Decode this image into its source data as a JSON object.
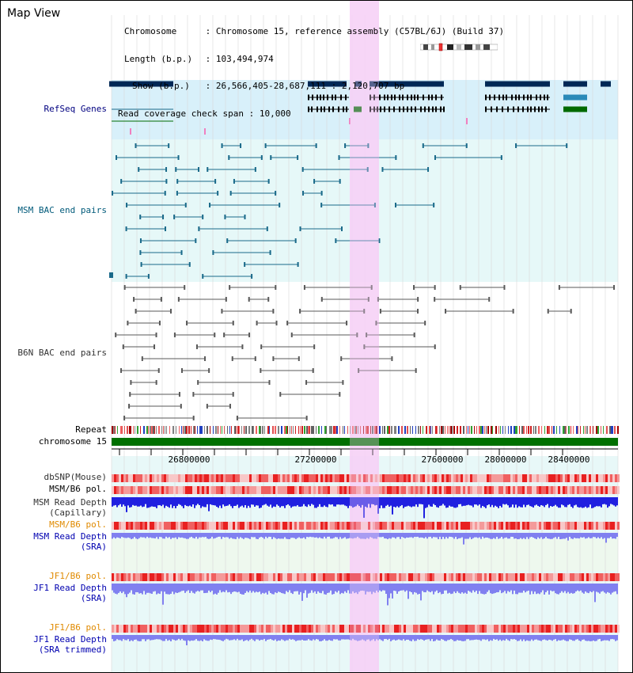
{
  "window": {
    "title": "Map View"
  },
  "info": {
    "chromosome_label": "Chromosome",
    "chromosome_value": "Chromosome 15, reference assembly (C57BL/6J) (Build 37)",
    "length_label": "Length (b.p.)",
    "length_value": "103,494,974",
    "show_label": "Show (b.p.)",
    "show_value": "26,566,405-28,687,111 : 2,120,707 bp",
    "coverage_label": "Read coverage check span",
    "coverage_value": "10,000"
  },
  "tracks": {
    "refseq": "RefSeq Genes",
    "msm_bac": "MSM BAC end pairs",
    "b6n_bac": "B6N BAC end pairs",
    "repeat": "Repeat",
    "chromosome": "chromosome 15",
    "dbsnp": "dbSNP(Mouse)",
    "msm_b6_pol": "MSM/B6 pol.",
    "msm_read_depth_cap_1": "MSM Read Depth",
    "msm_read_depth_cap_2": "(Capillary)",
    "msm_b6_pol_2": "MSM/B6 pol.",
    "msm_read_depth_sra_1": "MSM Read Depth",
    "msm_read_depth_sra_2": "(SRA)",
    "jf1_b6_pol": "JF1/B6 pol.",
    "jf1_read_depth_sra_1": "JF1 Read Depth",
    "jf1_read_depth_sra_2": "(SRA)",
    "jf1_b6_pol_2": "JF1/B6 pol.",
    "jf1_read_depth_trim_1": "JF1 Read Depth",
    "jf1_read_depth_trim_2": "(SRA trimmed)"
  },
  "axis": {
    "ticks": [
      "26800000",
      "27200000",
      "27600000",
      "28000000",
      "28400000"
    ]
  },
  "colors": {
    "highlight": "#f7d2f7",
    "refseq_bg": "#d8f0fa",
    "msm_bg": "#e6f8f8",
    "b6n_bg": "#ffffff",
    "gene_navy": "#002856",
    "gene_teal": "#2a8ab8",
    "gene_green": "#006a00",
    "bac_teal": "#1a6a8a",
    "bac_gray": "#5a5a5a",
    "chromosome_bar": "#007000",
    "snp_red": "#e8302a",
    "depth_blue": "#2020e0",
    "depth_light_blue": "#8080f0"
  }
}
